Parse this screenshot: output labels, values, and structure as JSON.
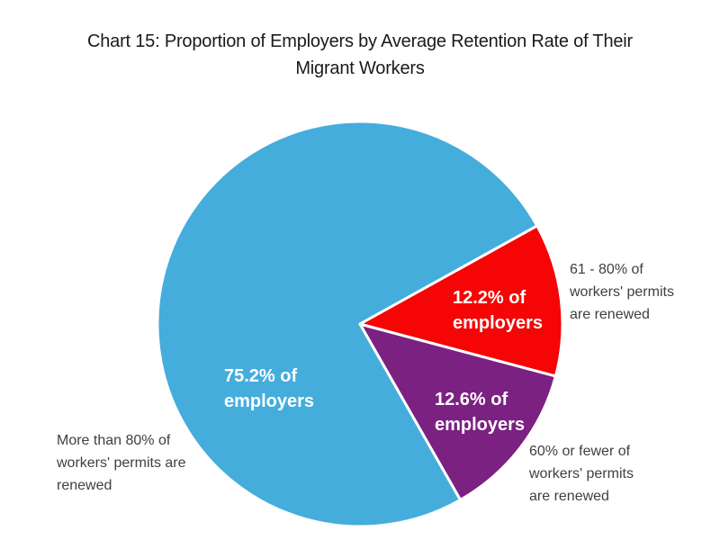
{
  "title": {
    "line1": "Chart 15: Proportion of Employers by Average Retention Rate of Their",
    "line2": "Migrant Workers",
    "full": "Chart 15: Proportion of Employers by Average Retention Rate of Their Migrant Workers"
  },
  "chart_data": {
    "type": "pie",
    "title": "Chart 15: Proportion of Employers by Average Retention Rate of Their Migrant Workers",
    "units": "% of employers",
    "start_angle_deg": 29,
    "direction": "counterclockwise",
    "legend": "none",
    "slices": [
      {
        "id": "more-than-80-renewed",
        "category": "More than 80% of workers' permits are renewed",
        "value": 75.2,
        "color": "#44ADDC",
        "inside_label": "75.2% of employers"
      },
      {
        "id": "60-or-fewer-renewed",
        "category": "60% or fewer of workers' permits are renewed",
        "value": 12.6,
        "color": "#7B2181",
        "inside_label": "12.6% of employers"
      },
      {
        "id": "61-80-renewed",
        "category": "61 - 80% of workers' permits are renewed",
        "value": 12.2,
        "color": "#F50506",
        "inside_label": "12.2% of employers"
      }
    ]
  },
  "labels": {
    "inside_blue": {
      "line1": "75.2% of",
      "line2": "employers"
    },
    "inside_red": {
      "line1": "12.2% of",
      "line2": "employers"
    },
    "inside_purple": {
      "line1": "12.6% of",
      "line2": "employers"
    },
    "outside_red": {
      "line1": "61 - 80% of",
      "line2": "workers' permits",
      "line3": "are renewed"
    },
    "outside_purple": {
      "line1": "60% or fewer of",
      "line2": "workers' permits",
      "line3": "are renewed"
    },
    "outside_blue": {
      "line1": "More than 80% of",
      "line2": "workers' permits are",
      "line3": "renewed"
    }
  },
  "colors": {
    "blue_slice": "#44ADDC",
    "red_slice": "#F50506",
    "purple_slice": "#7B2181",
    "slice_separator": "#FFFFFF",
    "title_text": "#1A1A1A",
    "outside_label_text": "#3F3F3F",
    "inside_label_text": "#FFFFFF"
  }
}
